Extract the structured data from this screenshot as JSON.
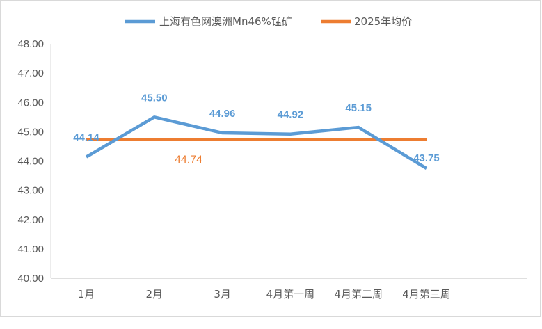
{
  "chart_data": {
    "type": "line",
    "title": "",
    "xlabel": "",
    "ylabel": "",
    "categories": [
      "1月",
      "2月",
      "3月",
      "4月第一周",
      "4月第二周",
      "4月第三周"
    ],
    "ylim": [
      40,
      48
    ],
    "y_ticks": [
      "40.00",
      "41.00",
      "42.00",
      "43.00",
      "44.00",
      "45.00",
      "46.00",
      "47.00",
      "48.00"
    ],
    "grid": false,
    "drop_lines": true,
    "legend": "top",
    "series": [
      {
        "name": "上海有色网澳洲Mn46%锰矿",
        "color": "#5b9bd5",
        "values": [
          44.14,
          45.5,
          44.96,
          44.92,
          45.15,
          43.75
        ],
        "labels": [
          "44.14",
          "45.50",
          "44.96",
          "44.92",
          "45.15",
          "43.75"
        ]
      },
      {
        "name": "2025年均价",
        "color": "#ed7d31",
        "values": [
          44.74,
          44.74,
          44.74,
          44.74,
          44.74,
          44.74
        ],
        "label": "44.74"
      }
    ]
  }
}
